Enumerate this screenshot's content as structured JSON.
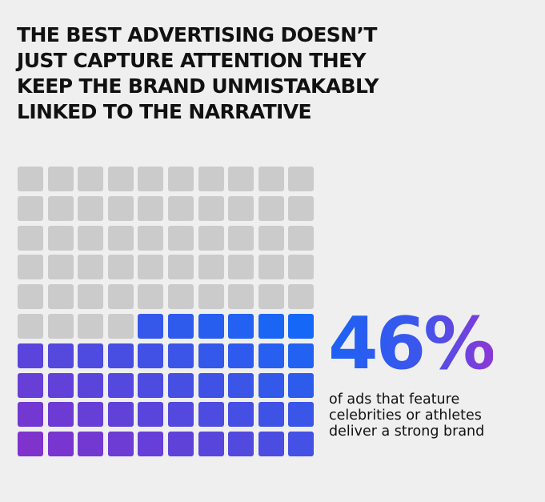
{
  "headline": {
    "lines": [
      "THE BEST ADVERTISING DOESN’T",
      "JUST CAPTURE ATTENTION THEY",
      "KEEP THE BRAND UNMISTAKABLY",
      "LINKED TO THE NARRATIVE"
    ]
  },
  "stat": {
    "value_label": "46%",
    "caption_lines": [
      "of ads that feature",
      "celebrities or athletes",
      "deliver a strong brand"
    ]
  },
  "chart_data": {
    "type": "waffle",
    "total_cells": 100,
    "filled_cells": 46,
    "percent": 46,
    "fill_order": "bottom-up, right-to-left",
    "colors": {
      "empty": "#cbcbcb",
      "fill_top_right": "#1568f7",
      "fill_bottom_left": "#7f32cc"
    }
  }
}
